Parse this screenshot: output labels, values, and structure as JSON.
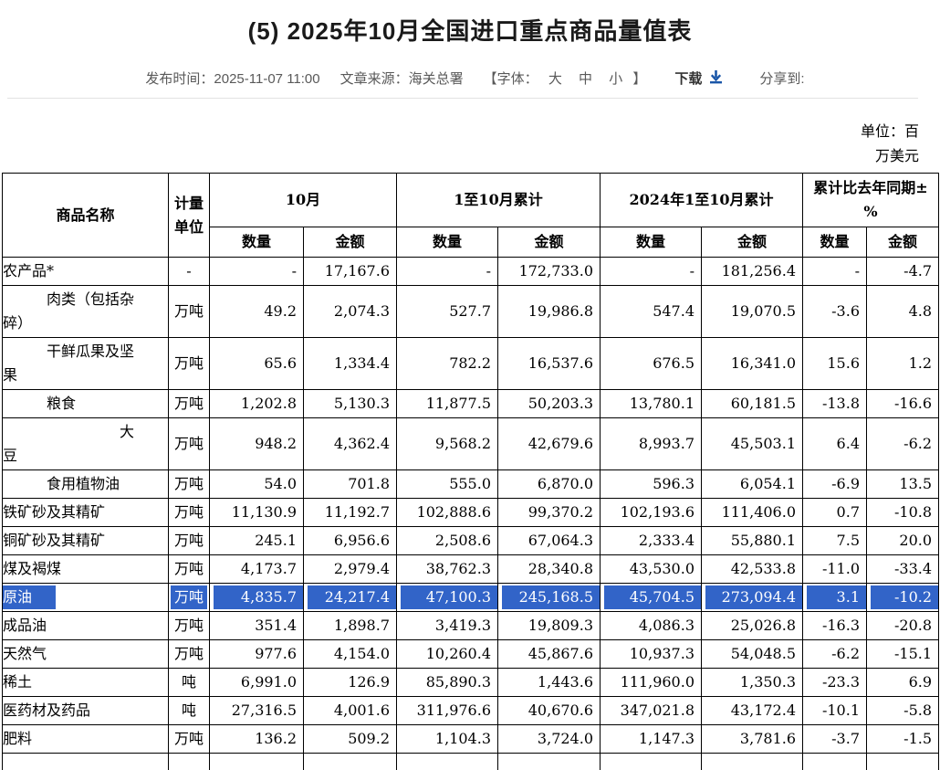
{
  "page": {
    "title": "(5) 2025年10月全国进口重点商品量值表"
  },
  "meta": {
    "publish": "发布时间：2025-11-07 11:00",
    "source": "文章来源：海关总署",
    "font_label_open": "【字体：",
    "font_sizes": [
      "大",
      "中",
      "小"
    ],
    "font_label_close": "】",
    "download_label": "下载",
    "download_icon": "download-arrow-icon",
    "share_label": "分享到:"
  },
  "unit_note": {
    "line1": "单位：百",
    "line2": "万美元"
  },
  "colors": {
    "selection_blue": "#3264c8",
    "divider_gray": "#e2e2e2",
    "download_icon_blue": "#1a56a8"
  },
  "table": {
    "headers": {
      "commodity": "商品名称",
      "unit": "计量\n单位",
      "october": "10月",
      "cumulative": "1至10月累计",
      "cumulative_2024": "2024年1至10月累计",
      "yoy": "累计比去年同期±\n%"
    },
    "sub_headers": [
      "数量",
      "金额"
    ],
    "rows": [
      {
        "name": "农产品*",
        "unit": "-",
        "values": [
          "-",
          "17,167.6",
          "-",
          "172,733.0",
          "-",
          "181,256.4",
          "-",
          "-4.7"
        ],
        "selected": false
      },
      {
        "name": "　　　肉类（包括杂\n碎）",
        "unit": "万吨",
        "values": [
          "49.2",
          "2,074.3",
          "527.7",
          "19,986.8",
          "547.4",
          "19,070.5",
          "-3.6",
          "4.8"
        ],
        "selected": false
      },
      {
        "name": "　　　干鲜瓜果及坚\n果",
        "unit": "万吨",
        "values": [
          "65.6",
          "1,334.4",
          "782.2",
          "16,537.6",
          "676.5",
          "16,341.0",
          "15.6",
          "1.2"
        ],
        "selected": false
      },
      {
        "name": "　　　粮食",
        "unit": "万吨",
        "values": [
          "1,202.8",
          "5,130.3",
          "11,877.5",
          "50,203.3",
          "13,780.1",
          "60,181.5",
          "-13.8",
          "-16.6"
        ],
        "selected": false
      },
      {
        "name": "　　　　　　　　大\n豆",
        "unit": "万吨",
        "values": [
          "948.2",
          "4,362.4",
          "9,568.2",
          "42,679.6",
          "8,993.7",
          "45,503.1",
          "6.4",
          "-6.2"
        ],
        "selected": false
      },
      {
        "name": "　　　食用植物油",
        "unit": "万吨",
        "values": [
          "54.0",
          "701.8",
          "555.0",
          "6,870.0",
          "596.3",
          "6,054.1",
          "-6.9",
          "13.5"
        ],
        "selected": false
      },
      {
        "name": "铁矿砂及其精矿",
        "unit": "万吨",
        "values": [
          "11,130.9",
          "11,192.7",
          "102,888.6",
          "99,370.2",
          "102,193.6",
          "111,406.0",
          "0.7",
          "-10.8"
        ],
        "selected": false
      },
      {
        "name": "铜矿砂及其精矿",
        "unit": "万吨",
        "values": [
          "245.1",
          "6,956.6",
          "2,508.6",
          "67,064.3",
          "2,333.4",
          "55,880.1",
          "7.5",
          "20.0"
        ],
        "selected": false
      },
      {
        "name": "煤及褐煤",
        "unit": "万吨",
        "values": [
          "4,173.7",
          "2,979.4",
          "38,762.3",
          "28,340.8",
          "43,530.0",
          "42,533.8",
          "-11.0",
          "-33.4"
        ],
        "selected": false
      },
      {
        "name": "原油",
        "unit": "万吨",
        "values": [
          "4,835.7",
          "24,217.4",
          "47,100.3",
          "245,168.5",
          "45,704.5",
          "273,094.4",
          "3.1",
          "-10.2"
        ],
        "selected": true
      },
      {
        "name": "成品油",
        "unit": "万吨",
        "values": [
          "351.4",
          "1,898.7",
          "3,419.3",
          "19,809.3",
          "4,086.3",
          "25,026.8",
          "-16.3",
          "-20.8"
        ],
        "selected": false
      },
      {
        "name": "天然气",
        "unit": "万吨",
        "values": [
          "977.6",
          "4,154.0",
          "10,260.4",
          "45,867.6",
          "10,937.3",
          "54,048.5",
          "-6.2",
          "-15.1"
        ],
        "selected": false
      },
      {
        "name": "稀土",
        "unit": "吨",
        "values": [
          "6,991.0",
          "126.9",
          "85,890.3",
          "1,443.6",
          "111,960.0",
          "1,350.3",
          "-23.3",
          "6.9"
        ],
        "selected": false
      },
      {
        "name": "医药材及药品",
        "unit": "吨",
        "values": [
          "27,316.5",
          "4,001.6",
          "311,976.6",
          "40,670.6",
          "347,021.8",
          "43,172.4",
          "-10.1",
          "-5.8"
        ],
        "selected": false
      },
      {
        "name": "肥料",
        "unit": "万吨",
        "values": [
          "136.2",
          "509.2",
          "1,104.3",
          "3,724.0",
          "1,147.3",
          "3,781.6",
          "-3.7",
          "-1.5"
        ],
        "selected": false
      }
    ]
  }
}
